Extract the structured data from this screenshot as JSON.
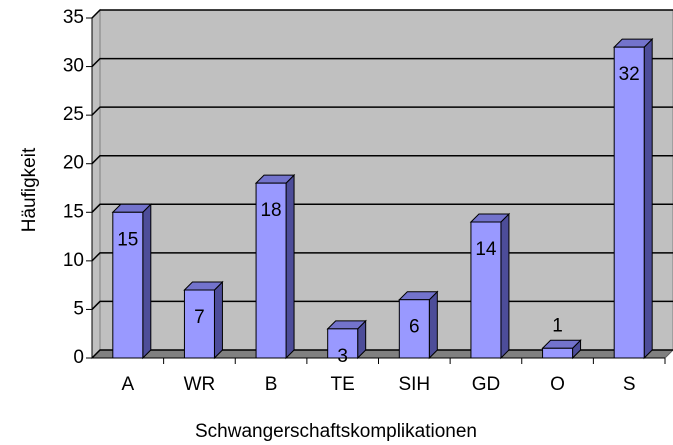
{
  "chart_data": {
    "type": "bar",
    "x_label": "Schwangerschaftskomplikationen",
    "y_label": "Häufigkeit",
    "categories": [
      "A",
      "WR",
      "B",
      "TE",
      "SIH",
      "GD",
      "O",
      "S"
    ],
    "values": [
      15,
      7,
      18,
      3,
      6,
      14,
      1,
      32
    ],
    "color": "#9999ff",
    "ylim": [
      0,
      35
    ],
    "yticks": [
      0,
      5,
      10,
      15,
      20,
      25,
      30,
      35
    ],
    "grid": true
  }
}
